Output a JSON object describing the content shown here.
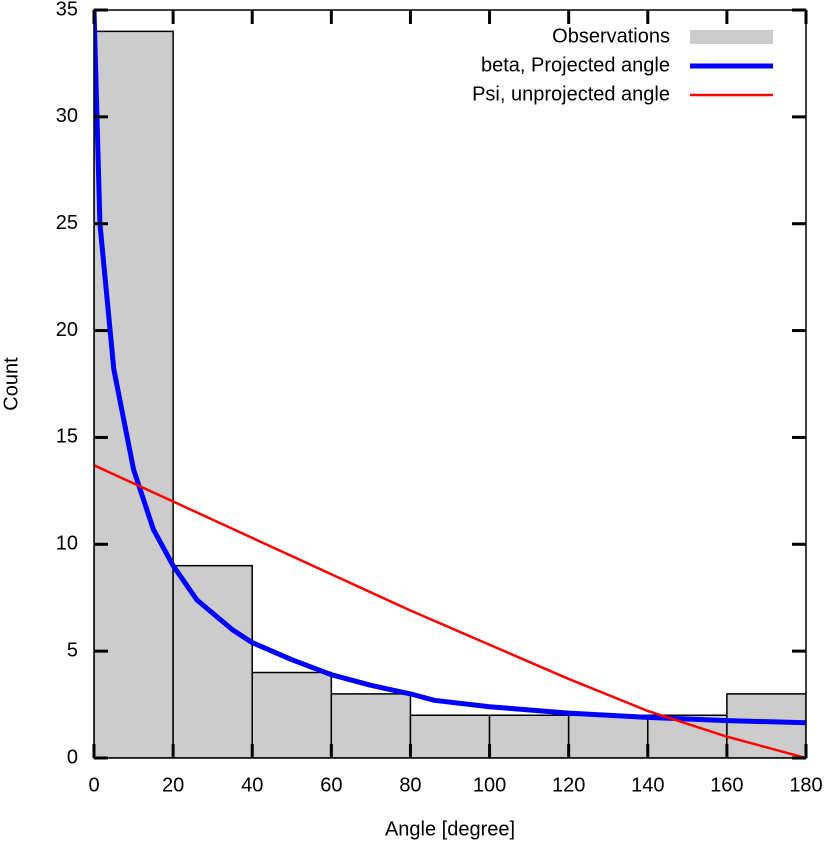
{
  "chart_data": {
    "type": "histogram",
    "xlabel": "Angle [degree]",
    "ylabel": "Count",
    "name": "Observations",
    "color": "#cccccc",
    "bins": [
      0,
      20,
      40,
      60,
      80,
      100,
      120,
      140,
      160,
      180
    ],
    "values": [
      34,
      9,
      4,
      3,
      2,
      2,
      2,
      2,
      3
    ],
    "lines": [
      {
        "name": "beta, Projected angle",
        "color": "#0000ff",
        "x": [
          0,
          1.5,
          5,
          10,
          15,
          20,
          26,
          35,
          40,
          50,
          60,
          70,
          80,
          86,
          100,
          120,
          140,
          160,
          180
        ],
        "values": [
          35,
          25,
          18.2,
          13.5,
          10.7,
          9.0,
          7.4,
          6.0,
          5.4,
          4.6,
          3.9,
          3.4,
          3.0,
          2.7,
          2.4,
          2.1,
          1.9,
          1.75,
          1.65
        ]
      },
      {
        "name": "Psi, unprojected angle",
        "color": "#ff0000",
        "x": [
          0,
          20,
          40,
          60,
          80,
          100,
          120,
          140,
          160,
          180
        ],
        "values": [
          13.7,
          12.0,
          10.3,
          8.6,
          6.9,
          5.3,
          3.7,
          2.2,
          1.0,
          0
        ]
      }
    ],
    "xlim": [
      0,
      180
    ],
    "ylim": [
      0,
      35
    ],
    "xticks": [
      0,
      20,
      40,
      60,
      80,
      100,
      120,
      140,
      160,
      180
    ],
    "yticks": [
      0,
      5,
      10,
      15,
      20,
      25,
      30,
      35
    ],
    "legend": "upper right"
  }
}
